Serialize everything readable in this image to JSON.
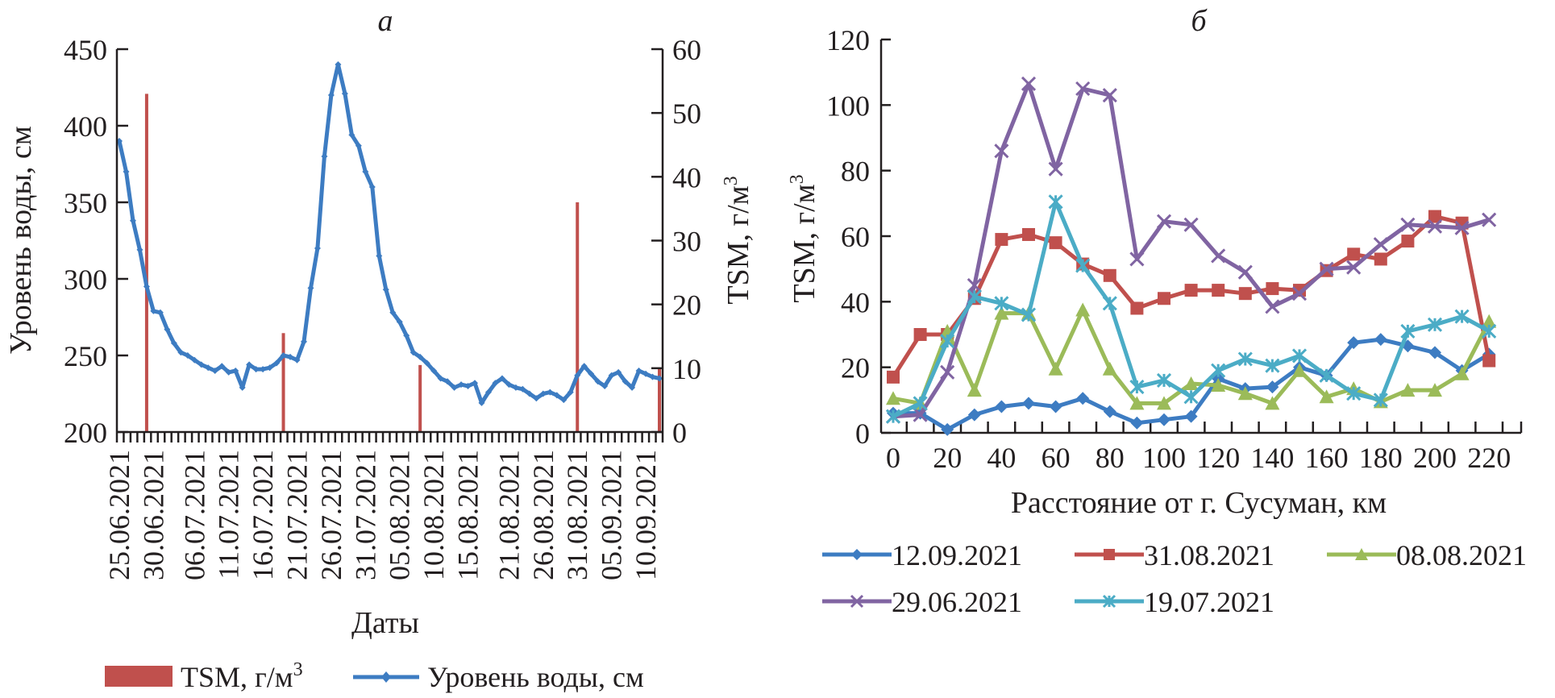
{
  "chart_data": [
    {
      "panel": "a",
      "type": "line+bar",
      "title": "а",
      "xlabel": "Даты",
      "ylabel_left": "Уровень воды, см",
      "ylabel_right": "TSM, г/м3",
      "ylim_left": [
        200,
        450
      ],
      "yticks_left": [
        200,
        250,
        300,
        350,
        400,
        450
      ],
      "ylim_right": [
        0,
        60
      ],
      "yticks_right": [
        0,
        10,
        20,
        30,
        40,
        50,
        60
      ],
      "x_tick_labels": [
        "25.06.2021",
        "30.06.2021",
        "06.07.2021",
        "11.07.2021",
        "16.07.2021",
        "21.07.2021",
        "26.07.2021",
        "31.07.2021",
        "05.08.2021",
        "10.08.2021",
        "15.08.2021",
        "21.08.2021",
        "26.08.2021",
        "31.08.2021",
        "05.09.2021",
        "10.09.2021"
      ],
      "x_tick_label_index": [
        0,
        5,
        11,
        16,
        21,
        26,
        31,
        36,
        41,
        46,
        51,
        57,
        62,
        67,
        72,
        77
      ],
      "n_days": 80,
      "start_date": "25.06.2021",
      "legend": [
        {
          "label": "TSM, г/м",
          "sup": "3",
          "kind": "bar",
          "color": "#c0504d"
        },
        {
          "label": "Уровень воды, см",
          "kind": "line",
          "color": "#3d7cc2"
        }
      ],
      "legend_position": "bottom",
      "series_line": {
        "name": "Уровень воды, см",
        "color": "#3d7cc2",
        "values": [
          390,
          370,
          338,
          319,
          295,
          279,
          278,
          267,
          258,
          252,
          250,
          247,
          244,
          242,
          240,
          243,
          239,
          240,
          229,
          244,
          241,
          241,
          242,
          245,
          250,
          249,
          247,
          259,
          294,
          320,
          380,
          420,
          440,
          421,
          394,
          387,
          370,
          360,
          315,
          293,
          278,
          272,
          263,
          252,
          249,
          245,
          240,
          235,
          233,
          229,
          231,
          230,
          232,
          219,
          226,
          232,
          235,
          231,
          229,
          228,
          225,
          222,
          225,
          226,
          224,
          221,
          226,
          237,
          243,
          238,
          233,
          230,
          237,
          239,
          233,
          229,
          240,
          238,
          236,
          235
        ]
      },
      "series_bar": {
        "name": "TSM, г/м3",
        "color": "#c0504d",
        "points": [
          {
            "date": "29.06.2021",
            "index": 4,
            "value": 53
          },
          {
            "date": "19.07.2021",
            "index": 24,
            "value": 15.5
          },
          {
            "date": "08.08.2021",
            "index": 44,
            "value": 10.5
          },
          {
            "date": "31.08.2021",
            "index": 67,
            "value": 36
          },
          {
            "date": "12.09.2021",
            "index": 79,
            "value": 10
          }
        ]
      }
    },
    {
      "panel": "б",
      "type": "line",
      "title": "б",
      "xlabel": "Расстояние от г. Сусуман, км",
      "ylabel": "TSM, г/м3",
      "ylim": [
        0,
        120
      ],
      "yticks": [
        0,
        20,
        40,
        60,
        80,
        100,
        120
      ],
      "x": [
        0,
        10,
        20,
        30,
        40,
        50,
        60,
        70,
        80,
        90,
        100,
        110,
        120,
        130,
        140,
        150,
        160,
        170,
        180,
        190,
        200,
        210,
        220
      ],
      "x_tick_labels": [
        "0",
        "20",
        "40",
        "60",
        "80",
        "100",
        "120",
        "140",
        "160",
        "180",
        "200",
        "220"
      ],
      "legend_position": "bottom",
      "series": [
        {
          "name": "12.09.2021",
          "color": "#3d7cc2",
          "marker": "diamond",
          "values": [
            6,
            6,
            1,
            5.5,
            8,
            9,
            8,
            10.5,
            6.5,
            3,
            4,
            5,
            16.5,
            13.5,
            14,
            20,
            17.5,
            27.5,
            28.5,
            26.5,
            24.5,
            19,
            24
          ]
        },
        {
          "name": "31.08.2021",
          "color": "#c0504d",
          "marker": "square",
          "values": [
            17,
            30,
            30,
            41,
            59,
            60.5,
            58,
            51.5,
            48,
            38,
            41,
            43.5,
            43.5,
            42.5,
            44,
            43.5,
            49.5,
            54.5,
            53,
            58.5,
            66,
            64,
            22
          ]
        },
        {
          "name": "08.08.2021",
          "color": "#9bbb59",
          "marker": "triangle",
          "values": [
            10.5,
            9,
            31,
            13,
            36.5,
            36.5,
            19.5,
            37.5,
            19.5,
            9,
            9,
            15,
            14.5,
            12,
            9,
            19,
            11,
            13.5,
            9.5,
            13,
            13,
            18,
            34
          ]
        },
        {
          "name": "29.06.2021",
          "color": "#8064a2",
          "marker": "x",
          "values": [
            5,
            5.5,
            18.5,
            45,
            86,
            106.5,
            80.5,
            105,
            103,
            53,
            64.5,
            63.5,
            54,
            49,
            38.5,
            42.5,
            50,
            50.5,
            57.5,
            63.5,
            63,
            62.5,
            65
          ]
        },
        {
          "name": "19.07.2021",
          "color": "#4bacc6",
          "marker": "star",
          "values": [
            5,
            9,
            28,
            41.5,
            39.5,
            36,
            70.5,
            51,
            39.5,
            14,
            16,
            11,
            19,
            22.5,
            20.5,
            23.5,
            17.5,
            12,
            10,
            31,
            33,
            35.5,
            31
          ]
        }
      ]
    }
  ]
}
